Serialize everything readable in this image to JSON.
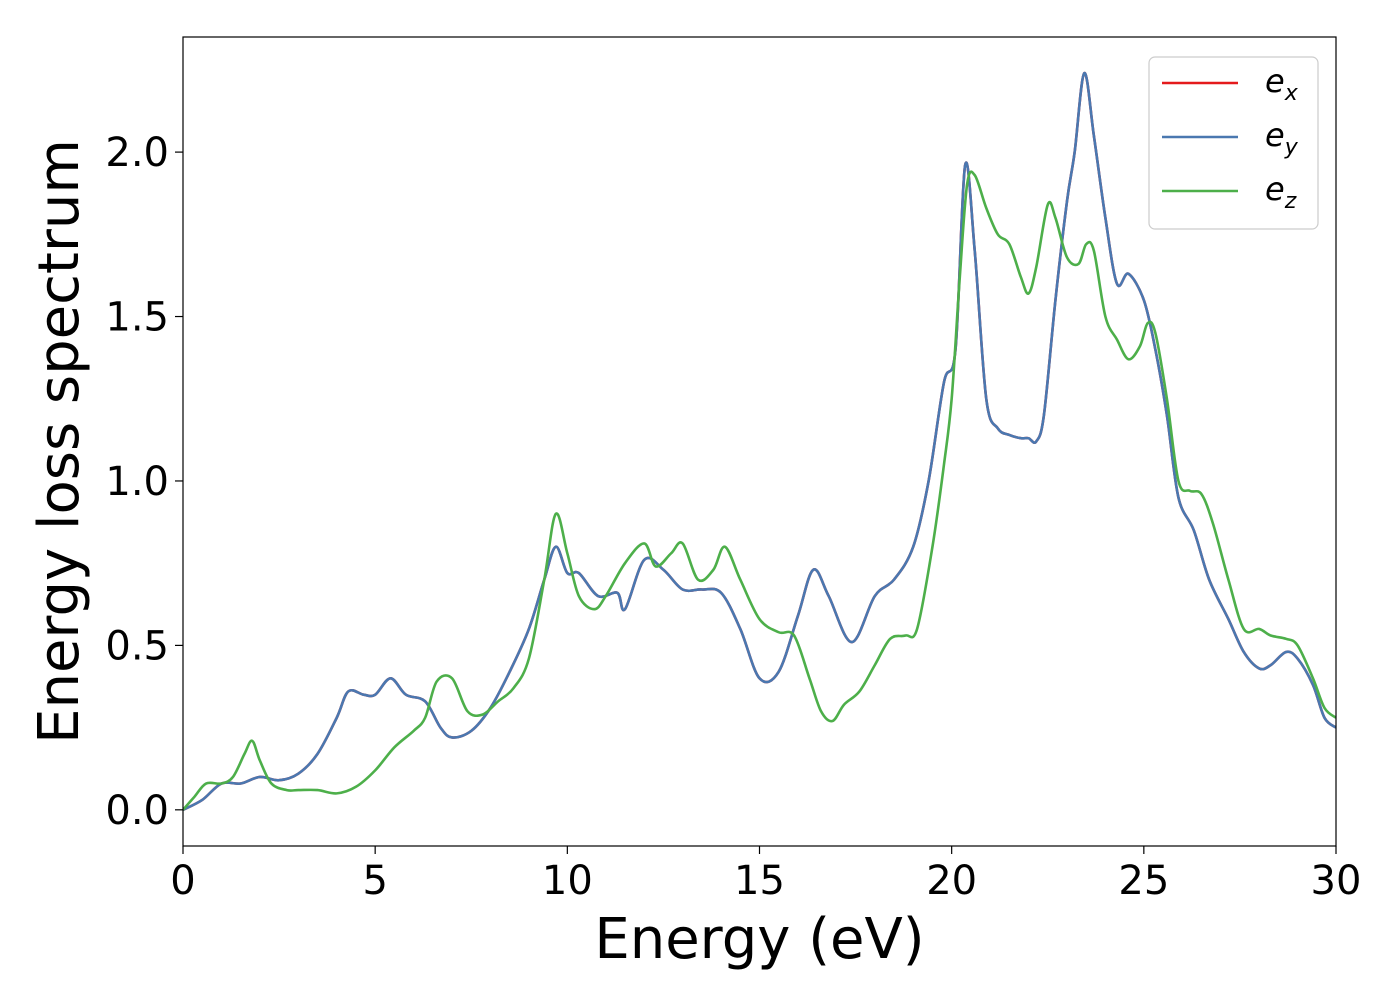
{
  "chart_data": {
    "type": "line",
    "xlabel": "Energy (eV)",
    "ylabel": "Energy loss spectrum",
    "xlim": [
      0,
      30
    ],
    "ylim": [
      -0.11,
      2.35
    ],
    "xticks": [
      "0",
      "5",
      "10",
      "15",
      "20",
      "25",
      "30"
    ],
    "yticks": [
      "0.0",
      "0.5",
      "1.0",
      "1.5",
      "2.0"
    ],
    "grid": false,
    "legend_position": "top-right",
    "series": [
      {
        "name": "e",
        "subscript": "x",
        "color": "#e41a1c",
        "x": [
          0,
          0.5,
          1.0,
          1.5,
          2.0,
          2.5,
          3.0,
          3.5,
          4.0,
          4.3,
          4.7,
          5.0,
          5.4,
          5.8,
          6.3,
          6.7,
          7.0,
          7.5,
          8.0,
          8.5,
          9.0,
          9.4,
          9.7,
          10.0,
          10.3,
          10.8,
          11.3,
          11.5,
          12.0,
          12.5,
          13.0,
          13.5,
          14.0,
          14.5,
          15.0,
          15.5,
          16.0,
          16.4,
          16.8,
          17.4,
          18.0,
          18.5,
          19.0,
          19.4,
          19.8,
          20.1,
          20.35,
          20.6,
          20.9,
          21.2,
          21.5,
          21.8,
          22.0,
          22.2,
          22.4,
          22.7,
          23.0,
          23.2,
          23.45,
          23.7,
          24.0,
          24.3,
          24.6,
          25.0,
          25.3,
          25.6,
          25.9,
          26.3,
          26.7,
          27.2,
          27.6,
          28.0,
          28.3,
          28.7,
          29.0,
          29.4,
          29.7,
          30.0
        ],
        "y": [
          0.0,
          0.03,
          0.08,
          0.08,
          0.1,
          0.09,
          0.11,
          0.17,
          0.28,
          0.36,
          0.35,
          0.35,
          0.4,
          0.35,
          0.33,
          0.25,
          0.22,
          0.24,
          0.31,
          0.42,
          0.55,
          0.7,
          0.8,
          0.72,
          0.72,
          0.65,
          0.66,
          0.61,
          0.76,
          0.73,
          0.67,
          0.67,
          0.66,
          0.55,
          0.4,
          0.42,
          0.59,
          0.73,
          0.65,
          0.51,
          0.65,
          0.7,
          0.8,
          1.0,
          1.3,
          1.4,
          1.96,
          1.7,
          1.25,
          1.16,
          1.14,
          1.13,
          1.13,
          1.12,
          1.2,
          1.55,
          1.85,
          2.0,
          2.24,
          2.05,
          1.8,
          1.6,
          1.63,
          1.55,
          1.4,
          1.2,
          0.95,
          0.85,
          0.7,
          0.58,
          0.48,
          0.43,
          0.44,
          0.48,
          0.46,
          0.38,
          0.28,
          0.25
        ]
      },
      {
        "name": "e",
        "subscript": "y",
        "color": "#4a78b0",
        "x": [
          0,
          0.5,
          1.0,
          1.5,
          2.0,
          2.5,
          3.0,
          3.5,
          4.0,
          4.3,
          4.7,
          5.0,
          5.4,
          5.8,
          6.3,
          6.7,
          7.0,
          7.5,
          8.0,
          8.5,
          9.0,
          9.4,
          9.7,
          10.0,
          10.3,
          10.8,
          11.3,
          11.5,
          12.0,
          12.5,
          13.0,
          13.5,
          14.0,
          14.5,
          15.0,
          15.5,
          16.0,
          16.4,
          16.8,
          17.4,
          18.0,
          18.5,
          19.0,
          19.4,
          19.8,
          20.1,
          20.35,
          20.6,
          20.9,
          21.2,
          21.5,
          21.8,
          22.0,
          22.2,
          22.4,
          22.7,
          23.0,
          23.2,
          23.45,
          23.7,
          24.0,
          24.3,
          24.6,
          25.0,
          25.3,
          25.6,
          25.9,
          26.3,
          26.7,
          27.2,
          27.6,
          28.0,
          28.3,
          28.7,
          29.0,
          29.4,
          29.7,
          30.0
        ],
        "y": [
          0.0,
          0.03,
          0.08,
          0.08,
          0.1,
          0.09,
          0.11,
          0.17,
          0.28,
          0.36,
          0.35,
          0.35,
          0.4,
          0.35,
          0.33,
          0.25,
          0.22,
          0.24,
          0.31,
          0.42,
          0.55,
          0.7,
          0.8,
          0.72,
          0.72,
          0.65,
          0.66,
          0.61,
          0.76,
          0.73,
          0.67,
          0.67,
          0.66,
          0.55,
          0.4,
          0.42,
          0.59,
          0.73,
          0.65,
          0.51,
          0.65,
          0.7,
          0.8,
          1.0,
          1.3,
          1.4,
          1.96,
          1.7,
          1.25,
          1.16,
          1.14,
          1.13,
          1.13,
          1.12,
          1.2,
          1.55,
          1.85,
          2.0,
          2.24,
          2.05,
          1.8,
          1.6,
          1.63,
          1.55,
          1.4,
          1.2,
          0.95,
          0.85,
          0.7,
          0.58,
          0.48,
          0.43,
          0.44,
          0.48,
          0.46,
          0.38,
          0.28,
          0.25
        ]
      },
      {
        "name": "e",
        "subscript": "z",
        "color": "#4daf4a",
        "x": [
          0,
          0.3,
          0.6,
          1.0,
          1.3,
          1.6,
          1.8,
          2.0,
          2.3,
          2.7,
          3.0,
          3.5,
          4.0,
          4.5,
          5.0,
          5.5,
          6.0,
          6.3,
          6.6,
          7.0,
          7.4,
          7.8,
          8.2,
          8.6,
          9.0,
          9.4,
          9.7,
          10.0,
          10.3,
          10.7,
          11.0,
          11.5,
          12.0,
          12.3,
          12.7,
          13.0,
          13.4,
          13.8,
          14.1,
          14.5,
          15.0,
          15.5,
          15.9,
          16.3,
          16.6,
          16.9,
          17.2,
          17.6,
          18.0,
          18.4,
          18.8,
          19.1,
          19.5,
          19.8,
          20.0,
          20.2,
          20.4,
          20.6,
          20.9,
          21.2,
          21.5,
          21.8,
          22.0,
          22.2,
          22.5,
          22.7,
          23.0,
          23.3,
          23.5,
          23.7,
          24.0,
          24.3,
          24.6,
          24.9,
          25.1,
          25.3,
          25.6,
          25.9,
          26.2,
          26.5,
          26.8,
          27.2,
          27.6,
          28.0,
          28.3,
          28.7,
          29.0,
          29.4,
          29.7,
          30.0
        ],
        "y": [
          0.0,
          0.04,
          0.08,
          0.08,
          0.1,
          0.17,
          0.21,
          0.15,
          0.08,
          0.06,
          0.06,
          0.06,
          0.05,
          0.07,
          0.12,
          0.19,
          0.24,
          0.28,
          0.39,
          0.4,
          0.3,
          0.29,
          0.33,
          0.37,
          0.46,
          0.7,
          0.9,
          0.78,
          0.65,
          0.61,
          0.65,
          0.75,
          0.81,
          0.74,
          0.78,
          0.81,
          0.7,
          0.73,
          0.8,
          0.7,
          0.58,
          0.54,
          0.53,
          0.4,
          0.3,
          0.27,
          0.32,
          0.36,
          0.44,
          0.52,
          0.53,
          0.55,
          0.8,
          1.05,
          1.25,
          1.6,
          1.9,
          1.93,
          1.83,
          1.75,
          1.72,
          1.62,
          1.57,
          1.65,
          1.84,
          1.8,
          1.68,
          1.66,
          1.72,
          1.7,
          1.5,
          1.43,
          1.37,
          1.41,
          1.48,
          1.45,
          1.25,
          1.0,
          0.97,
          0.96,
          0.87,
          0.7,
          0.55,
          0.55,
          0.53,
          0.52,
          0.5,
          0.4,
          0.31,
          0.28
        ]
      }
    ]
  }
}
